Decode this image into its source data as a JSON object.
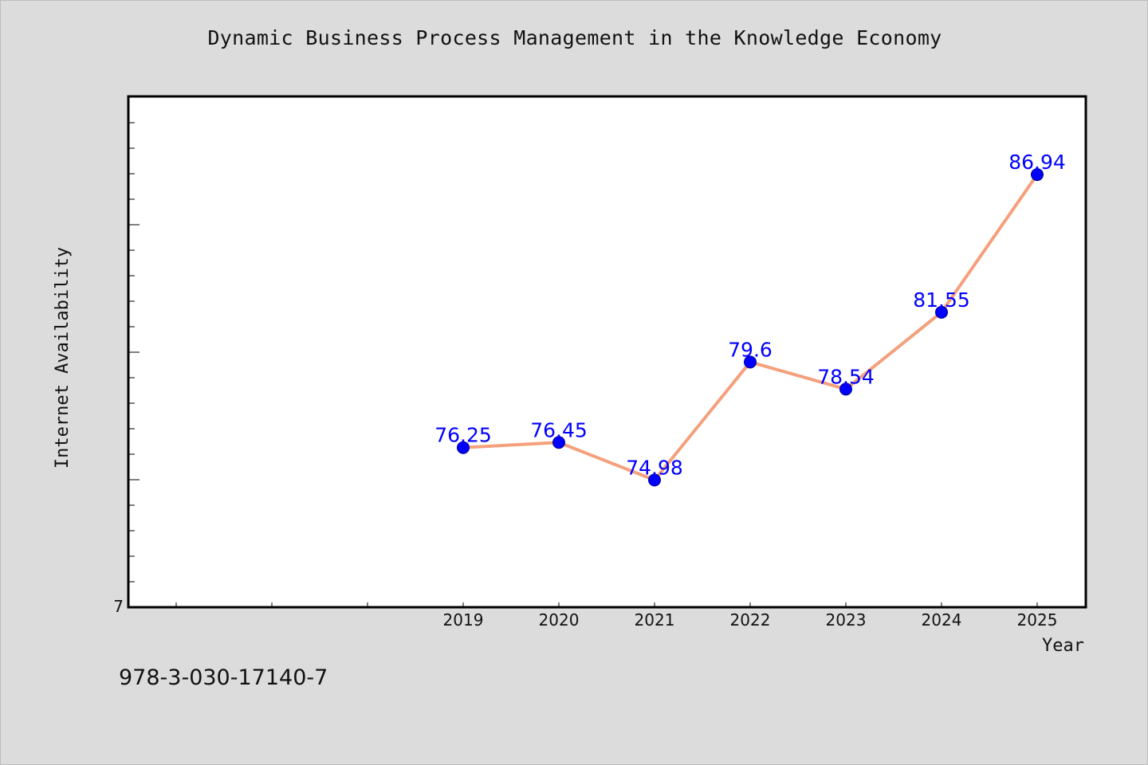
{
  "title": "Dynamic Business Process Management in the Knowledge Economy",
  "footer_text": "978-3-030-17140-7",
  "chart_data": {
    "type": "line",
    "title": "Dynamic Business Process Management in the Knowledge Economy",
    "xlabel": "Year",
    "ylabel": "Internet Availability",
    "y_tick_labels": [
      "7"
    ],
    "categories": [
      "2019",
      "2020",
      "2021",
      "2022",
      "2023",
      "2024",
      "2025"
    ],
    "series": [
      {
        "values": [
          76.25,
          76.45,
          74.98,
          79.6,
          78.54,
          81.55,
          86.94
        ],
        "line_color": "#f4a07c",
        "marker_color": "#0000ff"
      }
    ],
    "data_labels": [
      "76.25",
      "76.45",
      "74.98",
      "79.6",
      "78.54",
      "81.55",
      "86.94"
    ],
    "ylim": [
      70,
      90
    ],
    "grid": false,
    "legend": "none"
  }
}
